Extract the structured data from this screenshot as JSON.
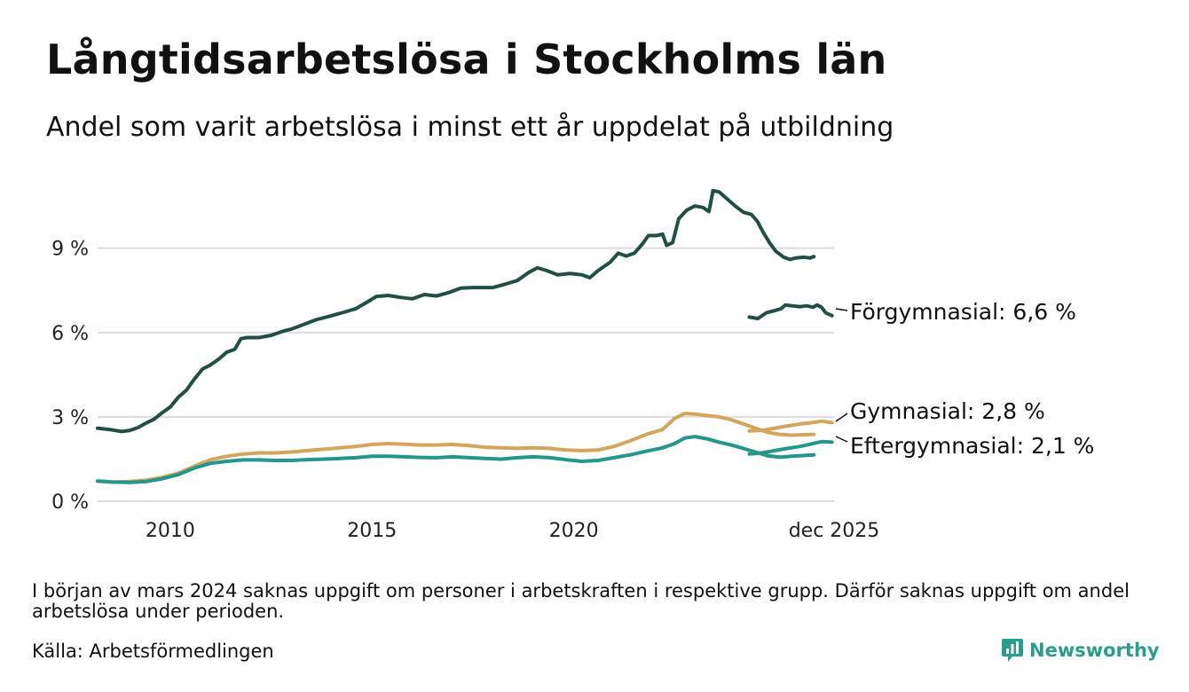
{
  "header": {
    "title": "Långtidsarbetslösa i Stockholms län",
    "subtitle": "Andel som varit arbetslösa i minst ett år uppdelat på utbildning"
  },
  "footer": {
    "note": "I början av mars 2024 saknas uppgift om personer i arbetskraften i respektive grupp. Därför saknas uppgift om andel arbetslösa under perioden.",
    "source": "Källa: Arbetsförmedlingen",
    "logo_text": "Newsworthy"
  },
  "colors": {
    "forgymnasial": "#1f4f45",
    "gymnasial": "#d4a55a",
    "eftergymnasial": "#23978c",
    "grid": "#dddddd",
    "logo": "#2a9d8f"
  },
  "chart_data": {
    "type": "line",
    "x_unit": "year",
    "xlim": [
      2008.2,
      2025.95
    ],
    "ylim": [
      0,
      11.2
    ],
    "y_ticks": [
      {
        "value": 0,
        "label": "0 %"
      },
      {
        "value": 3,
        "label": "3 %"
      },
      {
        "value": 6,
        "label": "6 %"
      },
      {
        "value": 9,
        "label": "9 %"
      }
    ],
    "x_ticks": [
      {
        "value": 2010,
        "label": "2010"
      },
      {
        "value": 2015,
        "label": "2015"
      },
      {
        "value": 2020,
        "label": "2020"
      },
      {
        "value": 2025.95,
        "label": "dec 2025"
      }
    ],
    "gap": {
      "from": 2024.15,
      "to": 2024.5
    },
    "series": [
      {
        "name": "Förgymnasial",
        "label": "Förgymnasial: 6,6 %",
        "color_key": "forgymnasial",
        "points": [
          [
            2008.2,
            2.6
          ],
          [
            2008.5,
            2.55
          ],
          [
            2008.8,
            2.48
          ],
          [
            2009.0,
            2.52
          ],
          [
            2009.2,
            2.62
          ],
          [
            2009.4,
            2.78
          ],
          [
            2009.6,
            2.92
          ],
          [
            2009.8,
            3.15
          ],
          [
            2010.0,
            3.35
          ],
          [
            2010.2,
            3.7
          ],
          [
            2010.4,
            3.95
          ],
          [
            2010.6,
            4.35
          ],
          [
            2010.8,
            4.7
          ],
          [
            2011.0,
            4.85
          ],
          [
            2011.2,
            5.05
          ],
          [
            2011.4,
            5.3
          ],
          [
            2011.6,
            5.4
          ],
          [
            2011.75,
            5.78
          ],
          [
            2011.9,
            5.82
          ],
          [
            2012.2,
            5.82
          ],
          [
            2012.5,
            5.9
          ],
          [
            2012.8,
            6.05
          ],
          [
            2013.0,
            6.12
          ],
          [
            2013.3,
            6.28
          ],
          [
            2013.6,
            6.45
          ],
          [
            2014.0,
            6.6
          ],
          [
            2014.3,
            6.72
          ],
          [
            2014.6,
            6.85
          ],
          [
            2014.9,
            7.1
          ],
          [
            2015.1,
            7.28
          ],
          [
            2015.4,
            7.32
          ],
          [
            2015.7,
            7.25
          ],
          [
            2016.0,
            7.2
          ],
          [
            2016.3,
            7.35
          ],
          [
            2016.6,
            7.3
          ],
          [
            2016.9,
            7.42
          ],
          [
            2017.2,
            7.58
          ],
          [
            2017.5,
            7.6
          ],
          [
            2017.8,
            7.6
          ],
          [
            2018.0,
            7.6
          ],
          [
            2018.3,
            7.72
          ],
          [
            2018.6,
            7.85
          ],
          [
            2018.9,
            8.15
          ],
          [
            2019.1,
            8.3
          ],
          [
            2019.3,
            8.22
          ],
          [
            2019.6,
            8.05
          ],
          [
            2019.9,
            8.1
          ],
          [
            2020.2,
            8.05
          ],
          [
            2020.4,
            7.95
          ],
          [
            2020.6,
            8.2
          ],
          [
            2020.9,
            8.5
          ],
          [
            2021.1,
            8.82
          ],
          [
            2021.3,
            8.72
          ],
          [
            2021.5,
            8.82
          ],
          [
            2021.7,
            9.15
          ],
          [
            2021.85,
            9.45
          ],
          [
            2022.05,
            9.45
          ],
          [
            2022.2,
            9.5
          ],
          [
            2022.3,
            9.1
          ],
          [
            2022.45,
            9.2
          ],
          [
            2022.6,
            10.05
          ],
          [
            2022.8,
            10.35
          ],
          [
            2023.0,
            10.5
          ],
          [
            2023.2,
            10.45
          ],
          [
            2023.35,
            10.3
          ],
          [
            2023.45,
            11.05
          ],
          [
            2023.6,
            11.0
          ],
          [
            2023.8,
            10.75
          ],
          [
            2024.0,
            10.5
          ],
          [
            2024.2,
            10.28
          ],
          [
            2024.4,
            10.2
          ],
          [
            2024.55,
            9.95
          ],
          [
            2024.7,
            9.55
          ],
          [
            2024.85,
            9.2
          ],
          [
            2025.0,
            8.9
          ],
          [
            2025.2,
            8.68
          ],
          [
            2025.35,
            8.6
          ],
          [
            2025.5,
            8.65
          ],
          [
            2025.7,
            8.68
          ],
          [
            2025.85,
            8.65
          ],
          [
            2025.95,
            8.7
          ]
        ]
      },
      {
        "name": "Gymnasial",
        "label": "Gymnasial: 2,8 %",
        "color_key": "gymnasial",
        "points": [
          [
            2008.2,
            0.72
          ],
          [
            2008.6,
            0.68
          ],
          [
            2009.0,
            0.7
          ],
          [
            2009.4,
            0.75
          ],
          [
            2009.8,
            0.85
          ],
          [
            2010.2,
            1.0
          ],
          [
            2010.6,
            1.25
          ],
          [
            2011.0,
            1.48
          ],
          [
            2011.4,
            1.6
          ],
          [
            2011.8,
            1.68
          ],
          [
            2012.2,
            1.72
          ],
          [
            2012.6,
            1.72
          ],
          [
            2013.0,
            1.75
          ],
          [
            2013.4,
            1.8
          ],
          [
            2013.8,
            1.85
          ],
          [
            2014.2,
            1.9
          ],
          [
            2014.6,
            1.95
          ],
          [
            2015.0,
            2.02
          ],
          [
            2015.4,
            2.05
          ],
          [
            2015.8,
            2.03
          ],
          [
            2016.2,
            2.0
          ],
          [
            2016.6,
            2.0
          ],
          [
            2017.0,
            2.02
          ],
          [
            2017.4,
            1.98
          ],
          [
            2017.8,
            1.92
          ],
          [
            2018.2,
            1.9
          ],
          [
            2018.6,
            1.88
          ],
          [
            2019.0,
            1.9
          ],
          [
            2019.4,
            1.88
          ],
          [
            2019.8,
            1.82
          ],
          [
            2020.2,
            1.8
          ],
          [
            2020.6,
            1.82
          ],
          [
            2021.0,
            1.95
          ],
          [
            2021.4,
            2.15
          ],
          [
            2021.8,
            2.38
          ],
          [
            2022.2,
            2.55
          ],
          [
            2022.5,
            2.95
          ],
          [
            2022.75,
            3.12
          ],
          [
            2023.0,
            3.1
          ],
          [
            2023.3,
            3.05
          ],
          [
            2023.6,
            3.0
          ],
          [
            2023.9,
            2.9
          ],
          [
            2024.2,
            2.75
          ],
          [
            2024.5,
            2.6
          ],
          [
            2024.8,
            2.45
          ],
          [
            2025.1,
            2.38
          ],
          [
            2025.4,
            2.35
          ],
          [
            2025.95,
            2.38
          ]
        ]
      },
      {
        "name": "Eftergymnasial",
        "label": "Eftergymnasial: 2,1 %",
        "color_key": "eftergymnasial",
        "points": [
          [
            2008.2,
            0.72
          ],
          [
            2008.6,
            0.68
          ],
          [
            2009.0,
            0.67
          ],
          [
            2009.4,
            0.7
          ],
          [
            2009.8,
            0.8
          ],
          [
            2010.2,
            0.95
          ],
          [
            2010.6,
            1.18
          ],
          [
            2011.0,
            1.35
          ],
          [
            2011.4,
            1.42
          ],
          [
            2011.8,
            1.47
          ],
          [
            2012.2,
            1.47
          ],
          [
            2012.6,
            1.45
          ],
          [
            2013.0,
            1.45
          ],
          [
            2013.4,
            1.48
          ],
          [
            2013.8,
            1.5
          ],
          [
            2014.2,
            1.52
          ],
          [
            2014.6,
            1.55
          ],
          [
            2015.0,
            1.6
          ],
          [
            2015.4,
            1.6
          ],
          [
            2015.8,
            1.58
          ],
          [
            2016.2,
            1.56
          ],
          [
            2016.6,
            1.55
          ],
          [
            2017.0,
            1.58
          ],
          [
            2017.4,
            1.55
          ],
          [
            2017.8,
            1.52
          ],
          [
            2018.2,
            1.5
          ],
          [
            2018.6,
            1.55
          ],
          [
            2019.0,
            1.58
          ],
          [
            2019.4,
            1.55
          ],
          [
            2019.8,
            1.48
          ],
          [
            2020.2,
            1.42
          ],
          [
            2020.6,
            1.45
          ],
          [
            2021.0,
            1.55
          ],
          [
            2021.4,
            1.65
          ],
          [
            2021.8,
            1.78
          ],
          [
            2022.2,
            1.9
          ],
          [
            2022.5,
            2.05
          ],
          [
            2022.75,
            2.25
          ],
          [
            2023.0,
            2.3
          ],
          [
            2023.3,
            2.22
          ],
          [
            2023.6,
            2.1
          ],
          [
            2023.9,
            2.0
          ],
          [
            2024.2,
            1.88
          ],
          [
            2024.5,
            1.75
          ],
          [
            2024.8,
            1.62
          ],
          [
            2025.1,
            1.57
          ],
          [
            2025.4,
            1.6
          ],
          [
            2025.95,
            1.65
          ]
        ]
      }
    ],
    "series_after_gap": [
      {
        "name": "Förgymnasial",
        "points": [
          [
            2024.5,
            6.55
          ],
          [
            2024.7,
            6.5
          ],
          [
            2024.9,
            6.7
          ],
          [
            2025.1,
            6.78
          ],
          [
            2025.25,
            6.85
          ],
          [
            2025.35,
            6.98
          ],
          [
            2025.5,
            6.95
          ],
          [
            2025.7,
            6.92
          ],
          [
            2025.85,
            6.95
          ],
          [
            2026.0,
            6.9
          ],
          [
            2026.1,
            6.98
          ],
          [
            2026.2,
            6.9
          ],
          [
            2026.3,
            6.7
          ],
          [
            2026.45,
            6.6
          ]
        ]
      },
      {
        "name": "Gymnasial",
        "points": [
          [
            2024.5,
            2.5
          ],
          [
            2024.8,
            2.52
          ],
          [
            2025.1,
            2.6
          ],
          [
            2025.4,
            2.68
          ],
          [
            2025.7,
            2.75
          ],
          [
            2026.0,
            2.8
          ],
          [
            2026.2,
            2.85
          ],
          [
            2026.45,
            2.8
          ]
        ]
      },
      {
        "name": "Eftergymnasial",
        "points": [
          [
            2024.5,
            1.68
          ],
          [
            2024.8,
            1.72
          ],
          [
            2025.1,
            1.8
          ],
          [
            2025.4,
            1.88
          ],
          [
            2025.7,
            1.95
          ],
          [
            2026.0,
            2.05
          ],
          [
            2026.2,
            2.12
          ],
          [
            2026.45,
            2.1
          ]
        ]
      }
    ]
  }
}
